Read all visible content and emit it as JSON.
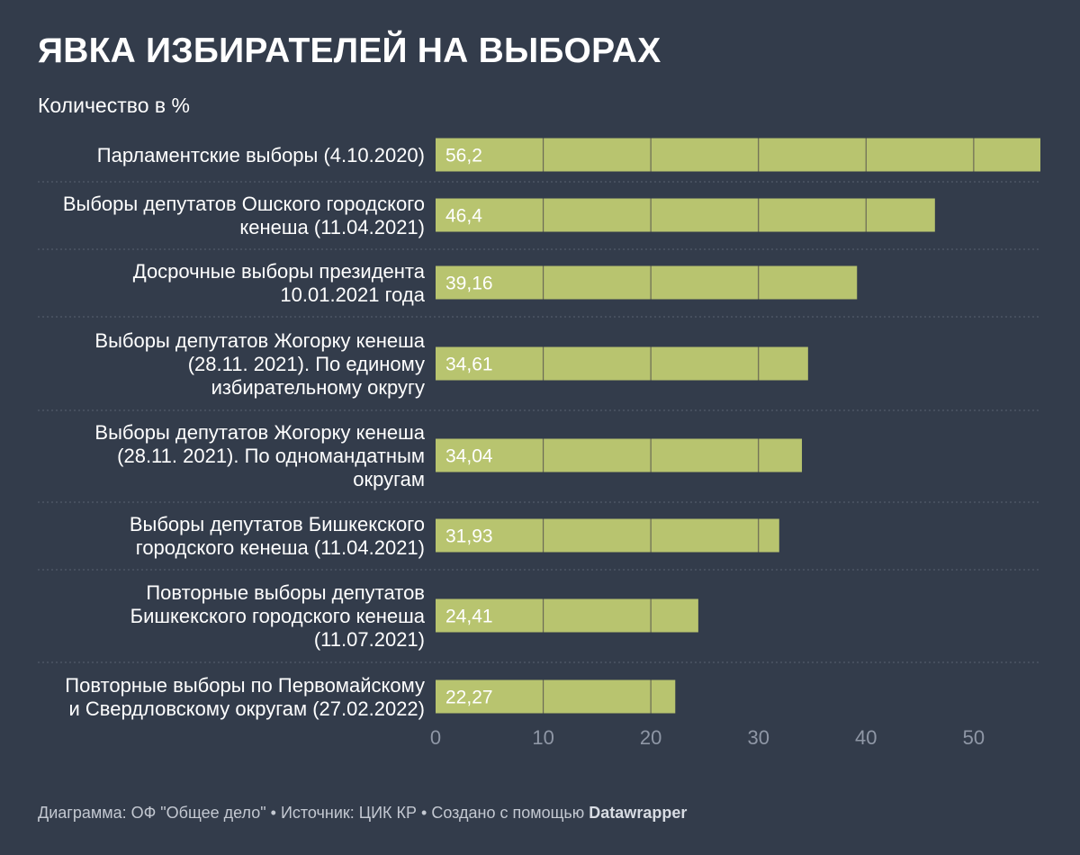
{
  "title": "ЯВКА ИЗБИРАТЕЛЕЙ НА ВЫБОРАХ",
  "subtitle": "Количество в %",
  "footer": {
    "text": "Диаграмма: ОФ \"Общее дело\" • Источник: ЦИК КР • Создано с помощью ",
    "brand": "Datawrapper"
  },
  "colors": {
    "background": "#333c4b",
    "bar": "#b8c46f",
    "grid": "#6b6a55",
    "separator": "#5a6272"
  },
  "chart_data": {
    "type": "bar",
    "orientation": "horizontal",
    "categories": [
      [
        "Парламентские выборы (4.10.2020)"
      ],
      [
        "Выборы депутатов Ошского городского",
        "кенеша (11.04.2021)"
      ],
      [
        "Досрочные выборы президента",
        "10.01.2021 года"
      ],
      [
        "Выборы депутатов Жогорку кенеша",
        "(28.11. 2021). По единому",
        "избирательному округу"
      ],
      [
        "Выборы депутатов Жогорку кенеша",
        "(28.11. 2021). По одномандатным",
        "округам"
      ],
      [
        "Выборы депутатов Бишкекского",
        "городского кенеша (11.04.2021)"
      ],
      [
        "Повторные выборы депутатов",
        "Бишкекского городского кенеша",
        "(11.07.2021)"
      ],
      [
        "Повторные выборы по Первомайскому",
        "и Свердловскому округам (27.02.2022)"
      ]
    ],
    "values": [
      56.2,
      46.4,
      39.16,
      34.61,
      34.04,
      31.93,
      24.41,
      22.27
    ],
    "value_labels": [
      "56,2",
      "46,4",
      "39,16",
      "34,61",
      "34,04",
      "31,93",
      "24,41",
      "22,27"
    ],
    "xlim": [
      0,
      56.2
    ],
    "xticks": [
      0,
      10,
      20,
      30,
      40,
      50
    ],
    "xtick_labels": [
      "0",
      "10",
      "20",
      "30",
      "40",
      "50"
    ],
    "grid": true,
    "legend": "none"
  }
}
